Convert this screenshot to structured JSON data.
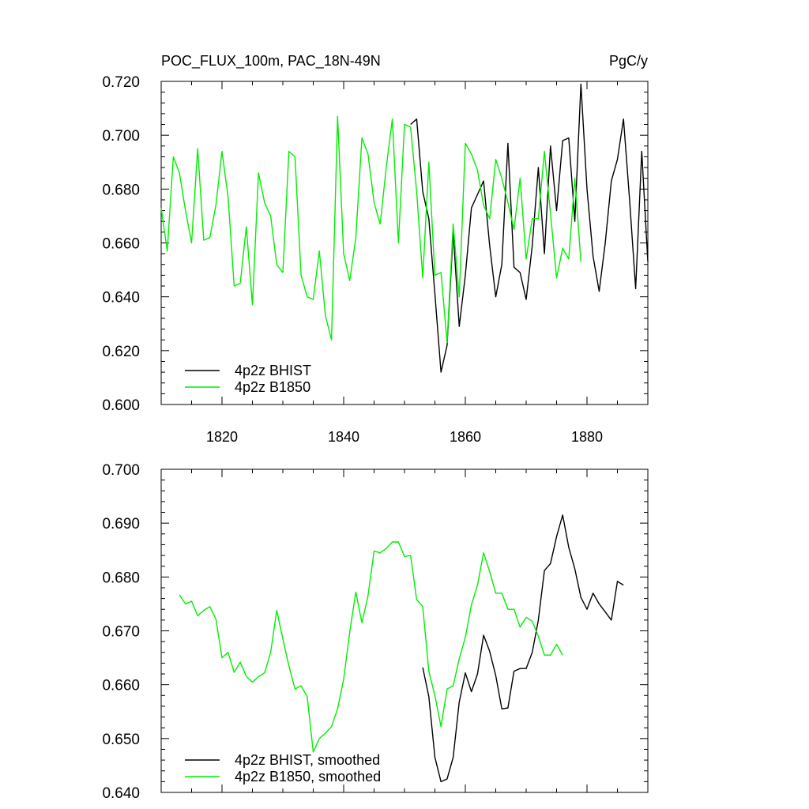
{
  "colors": {
    "bhist": "#000000",
    "b1850": "#00ee00"
  },
  "chart_data": [
    {
      "type": "line",
      "title": "POC_FLUX_100m, PAC_18N-49N",
      "units": "PgC/y",
      "xlim": [
        1810,
        1890
      ],
      "ylim": [
        0.6,
        0.72
      ],
      "xticks": [
        1820,
        1840,
        1860,
        1880
      ],
      "xtick_labels": [
        "1820",
        "1840",
        "1860",
        "1880"
      ],
      "yticks": [
        0.6,
        0.62,
        0.64,
        0.66,
        0.68,
        0.7,
        0.72
      ],
      "ytick_labels": [
        "0.600",
        "0.620",
        "0.640",
        "0.660",
        "0.680",
        "0.700",
        "0.720"
      ],
      "legend_position": "bottom-left",
      "series": [
        {
          "name": "4p2z BHIST",
          "color_key": "bhist",
          "x0": 1851,
          "values": [
            0.704,
            0.706,
            0.679,
            0.669,
            0.641,
            0.612,
            0.622,
            0.664,
            0.629,
            0.648,
            0.673,
            0.678,
            0.683,
            0.659,
            0.64,
            0.652,
            0.697,
            0.651,
            0.649,
            0.639,
            0.659,
            0.688,
            0.656,
            0.696,
            0.672,
            0.698,
            0.699,
            0.668,
            0.719,
            0.68,
            0.655,
            0.642,
            0.66,
            0.683,
            0.691,
            0.706,
            0.676,
            0.643,
            0.694,
            0.653
          ]
        },
        {
          "name": "4p2z B1850",
          "color_key": "b1850",
          "x0": 1810,
          "values": [
            0.673,
            0.657,
            0.692,
            0.686,
            0.672,
            0.66,
            0.695,
            0.661,
            0.662,
            0.674,
            0.694,
            0.677,
            0.644,
            0.645,
            0.666,
            0.637,
            0.686,
            0.675,
            0.67,
            0.652,
            0.649,
            0.694,
            0.692,
            0.648,
            0.64,
            0.639,
            0.657,
            0.633,
            0.624,
            0.707,
            0.656,
            0.646,
            0.662,
            0.699,
            0.693,
            0.675,
            0.667,
            0.688,
            0.706,
            0.66,
            0.704,
            0.703,
            0.679,
            0.647,
            0.69,
            0.648,
            0.649,
            0.623,
            0.667,
            0.64,
            0.697,
            0.693,
            0.687,
            0.674,
            0.669,
            0.691,
            0.684,
            0.675,
            0.665,
            0.684,
            0.654,
            0.669,
            0.669,
            0.694,
            0.671,
            0.647,
            0.658,
            0.654,
            0.684,
            0.653
          ]
        }
      ]
    },
    {
      "type": "line",
      "xlim": [
        1810,
        1890
      ],
      "ylim": [
        0.64,
        0.7
      ],
      "xticks": [
        1820,
        1840,
        1860,
        1880
      ],
      "yticks": [
        0.64,
        0.65,
        0.66,
        0.67,
        0.68,
        0.69,
        0.7
      ],
      "ytick_labels": [
        "0.640",
        "0.650",
        "0.660",
        "0.670",
        "0.680",
        "0.690",
        "0.700"
      ],
      "legend_position": "bottom-left",
      "series": [
        {
          "name": "4p2z BHIST, smoothed",
          "color_key": "bhist",
          "x0": 1853,
          "values": [
            0.6632,
            0.6578,
            0.6465,
            0.642,
            0.6425,
            0.6465,
            0.6568,
            0.6622,
            0.6587,
            0.662,
            0.6692,
            0.6662,
            0.6617,
            0.6555,
            0.6557,
            0.6625,
            0.663,
            0.663,
            0.666,
            0.672,
            0.6812,
            0.6825,
            0.6875,
            0.6915,
            0.6855,
            0.6815,
            0.6762,
            0.674,
            0.677,
            0.675,
            0.6735,
            0.672,
            0.6792,
            0.6785
          ]
        },
        {
          "name": "4p2z B1850, smoothed",
          "color_key": "b1850",
          "x0": 1813,
          "values": [
            0.6767,
            0.675,
            0.6755,
            0.6728,
            0.6738,
            0.6745,
            0.6722,
            0.665,
            0.666,
            0.6623,
            0.6642,
            0.6615,
            0.6605,
            0.6615,
            0.6622,
            0.666,
            0.6738,
            0.6685,
            0.6635,
            0.6592,
            0.6598,
            0.6578,
            0.6475,
            0.65,
            0.651,
            0.6522,
            0.6555,
            0.661,
            0.6698,
            0.6772,
            0.6715,
            0.6765,
            0.6848,
            0.6845,
            0.6853,
            0.6865,
            0.6865,
            0.6838,
            0.684,
            0.6758,
            0.6745,
            0.6625,
            0.658,
            0.6522,
            0.6592,
            0.6598,
            0.6648,
            0.6688,
            0.6748,
            0.6785,
            0.6845,
            0.681,
            0.677,
            0.677,
            0.674,
            0.674,
            0.6707,
            0.6725,
            0.6718,
            0.669,
            0.6655,
            0.6655,
            0.6675,
            0.6655
          ]
        }
      ]
    }
  ]
}
